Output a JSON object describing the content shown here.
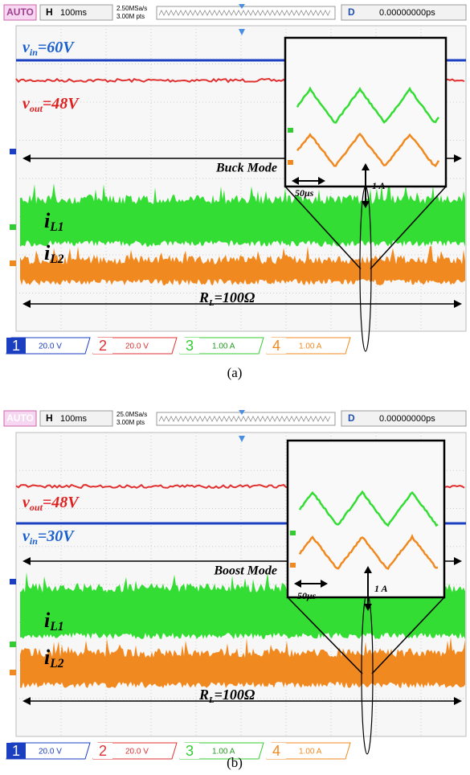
{
  "panels": [
    {
      "header": {
        "auto": "AUTO",
        "h": "H",
        "timebase": "100ms",
        "sample_rate": "2.50MSa/s",
        "points": "3.00M pts",
        "d": "D",
        "delay": "0.00000000ps"
      },
      "labels": {
        "vin": {
          "symbol": "v",
          "sub": "in",
          "value": "=60V"
        },
        "vout": {
          "symbol": "v",
          "sub": "out",
          "value": "=48V"
        },
        "il1": {
          "symbol": "i",
          "sub": "L1"
        },
        "il2": {
          "symbol": "i",
          "sub": "L2"
        },
        "load": {
          "symbol": "R",
          "sub": "L",
          "value": "=100Ω"
        }
      },
      "mode": "Buck Mode",
      "inset": {
        "time": "50μs",
        "current": "1 A"
      },
      "channels": [
        {
          "num": "1",
          "scale": "20.0 V"
        },
        {
          "num": "2",
          "scale": "20.0 V"
        },
        {
          "num": "3",
          "scale": "1.00 A"
        },
        {
          "num": "4",
          "scale": "1.00 A"
        }
      ],
      "caption": "(a)"
    },
    {
      "header": {
        "auto": "AUTO",
        "h": "H",
        "timebase": "100ms",
        "sample_rate": "25.0MSa/s",
        "points": "3.00M pts",
        "d": "D",
        "delay": "0.00000000ps"
      },
      "labels": {
        "vin": {
          "symbol": "v",
          "sub": "in",
          "value": "=30V"
        },
        "vout": {
          "symbol": "v",
          "sub": "out",
          "value": "=48V"
        },
        "il1": {
          "symbol": "i",
          "sub": "L1"
        },
        "il2": {
          "symbol": "i",
          "sub": "L2"
        },
        "load": {
          "symbol": "R",
          "sub": "L",
          "value": "=100Ω"
        }
      },
      "mode": "Boost Mode",
      "inset": {
        "time": "50μs",
        "current": "1 A"
      },
      "channels": [
        {
          "num": "1",
          "scale": "20.0 V"
        },
        {
          "num": "2",
          "scale": "20.0 V"
        },
        {
          "num": "3",
          "scale": "1.00 A"
        },
        {
          "num": "4",
          "scale": "1.00 A"
        }
      ],
      "caption": "(b)"
    }
  ]
}
